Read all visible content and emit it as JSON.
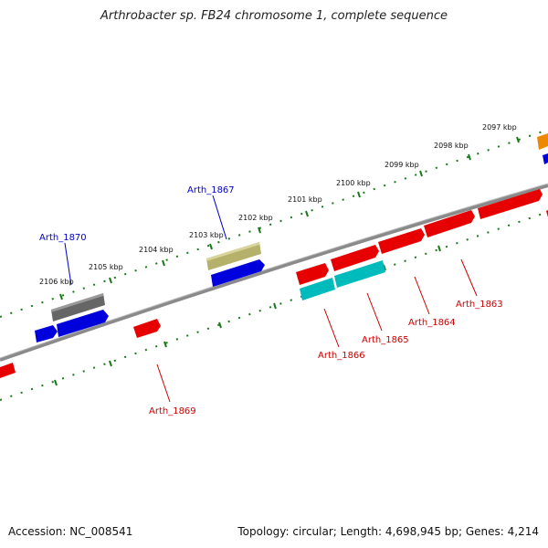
{
  "title": "Arthrobacter sp. FB24 chromosome 1, complete sequence",
  "footer": {
    "accession": "Accession: NC_008541",
    "summary": "Topology: circular; Length: 4,698,945 bp; Genes: 4,214"
  },
  "colors": {
    "backbone": "#8a8a8a",
    "forward_label": "#0000cc",
    "reverse_label": "#cc0000",
    "tick": "#1a7a1a",
    "red": "#e60000",
    "blue": "#0000dd",
    "cyan": "#00bbbb",
    "gray": "#666666",
    "olive": "#b5b06a",
    "orange": "#ee8800"
  },
  "tick_labels": [
    "2097 kbp",
    "2098 kbp",
    "2099 kbp",
    "2100 kbp",
    "2101 kbp",
    "2102 kbp",
    "2103 kbp",
    "2104 kbp",
    "2105 kbp",
    "2106 kbp"
  ],
  "gene_labels": {
    "forward": [
      "Arth_1867",
      "Arth_1870"
    ],
    "reverse": [
      "Arth_1863",
      "Arth_1864",
      "Arth_1865",
      "Arth_1866",
      "Arth_1869"
    ]
  }
}
